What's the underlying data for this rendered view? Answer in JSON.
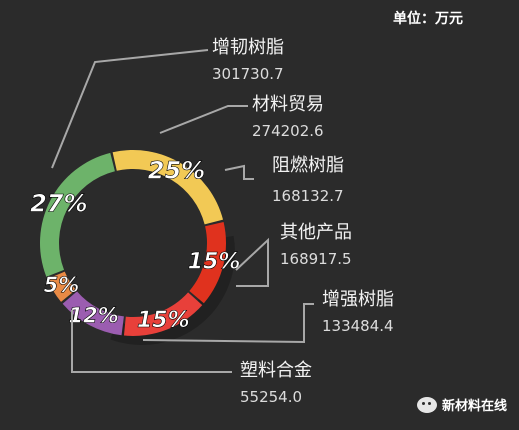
{
  "unit_label": "单位：万元",
  "watermark": {
    "text": "新材料在线",
    "icon": "wechat-icon"
  },
  "chart_data": {
    "type": "pie",
    "title": "",
    "unit": "万元",
    "donut": true,
    "slices": [
      {
        "label": "增韧树脂",
        "value": 301730.7,
        "percent_label": "27%",
        "color": "#6db36a"
      },
      {
        "label": "材料贸易",
        "value": 274202.6,
        "percent_label": "25%",
        "color": "#f2c955"
      },
      {
        "label": "阻燃树脂",
        "value": 168132.7,
        "percent_label": "15%",
        "color": "#e0321e"
      },
      {
        "label": "其他产品",
        "value": 168917.5,
        "percent_label": "15%",
        "color": "#e8403a"
      },
      {
        "label": "增强树脂",
        "value": 133484.4,
        "percent_label": "12%",
        "color": "#9b5db0"
      },
      {
        "label": "塑料合金",
        "value": 55254.0,
        "percent_label": "5%",
        "color": "#e98a45"
      }
    ]
  }
}
